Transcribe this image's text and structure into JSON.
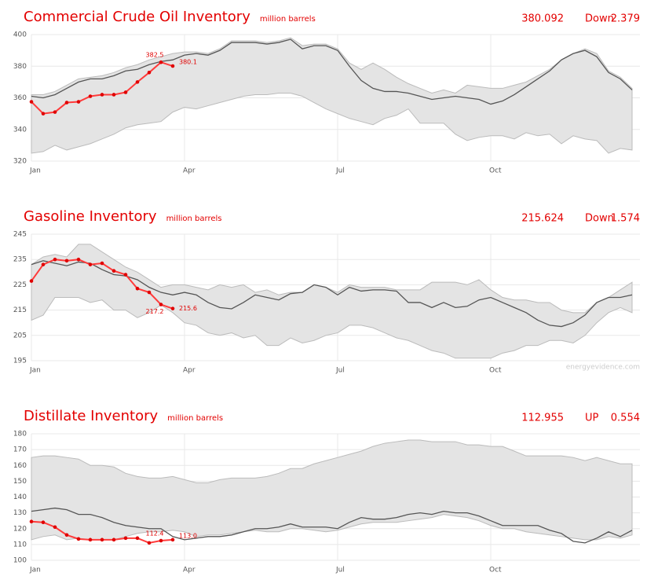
{
  "chart_data": [
    {
      "type": "line",
      "title": "Commercial Crude Oil Inventory",
      "subtitle": "million barrels",
      "latest": "380.092",
      "direction": "Down",
      "change": "2.379",
      "categories": [
        "Jan",
        null,
        null,
        null,
        null,
        null,
        null,
        null,
        null,
        null,
        null,
        null,
        null,
        "Apr",
        null,
        null,
        null,
        null,
        null,
        null,
        null,
        null,
        null,
        null,
        null,
        null,
        "Jul",
        null,
        null,
        null,
        null,
        null,
        null,
        null,
        null,
        null,
        null,
        null,
        null,
        "Oct",
        null,
        null,
        null,
        null,
        null,
        null,
        null,
        null,
        null,
        null,
        null,
        null
      ],
      "ylim": [
        320,
        400
      ],
      "yticks": [
        320,
        340,
        360,
        380,
        400
      ],
      "grid": true,
      "band": {
        "color": "#e4e4e4",
        "high": [
          362,
          362,
          364,
          368,
          372,
          373,
          374,
          376,
          379,
          381,
          384,
          386,
          388,
          389,
          389,
          388,
          391,
          396,
          396,
          396,
          395,
          396,
          398,
          393,
          394,
          394,
          391,
          382,
          378,
          382,
          378,
          373,
          369,
          366,
          363,
          365,
          363,
          368,
          367,
          366,
          366,
          368,
          370,
          374,
          378,
          384,
          388,
          391,
          388,
          377,
          373,
          366
        ],
        "low": [
          325,
          326,
          330,
          327,
          329,
          331,
          334,
          337,
          341,
          343,
          344,
          345,
          351,
          354,
          353,
          355,
          357,
          359,
          361,
          362,
          362,
          363,
          363,
          361,
          357,
          353,
          350,
          347,
          345,
          343,
          347,
          349,
          353,
          344,
          344,
          344,
          337,
          333,
          335,
          336,
          336,
          334,
          338,
          336,
          337,
          331,
          336,
          334,
          333,
          325,
          328,
          327
        ]
      },
      "series": [
        {
          "color": "#555555",
          "values": [
            361,
            360,
            362,
            366,
            370,
            372,
            372,
            374,
            377,
            378,
            381,
            383,
            384,
            387,
            388,
            387,
            390,
            395,
            395,
            395,
            394,
            395,
            397,
            391,
            393,
            393,
            390,
            380,
            371,
            366,
            364,
            364,
            363,
            361,
            359,
            360,
            361,
            360,
            359,
            356,
            358,
            362,
            367,
            372,
            377,
            384,
            388,
            390,
            386,
            376,
            372,
            365
          ]
        },
        {
          "color": "#ff3b3b",
          "markers": true,
          "values": [
            357.5,
            350,
            351,
            357,
            357.5,
            361,
            362,
            362,
            363.5,
            370,
            376,
            382.5,
            380.1,
            null,
            null,
            null,
            null,
            null,
            null,
            null,
            null,
            null,
            null,
            null,
            null,
            null,
            null,
            null,
            null,
            null,
            null,
            null,
            null,
            null,
            null,
            null,
            null,
            null,
            null,
            null,
            null,
            null,
            null,
            null,
            null,
            null,
            null,
            null,
            null,
            null,
            null,
            null
          ],
          "value_labels": [
            null,
            null,
            null,
            null,
            null,
            null,
            null,
            null,
            null,
            null,
            null,
            "382.5",
            "380.1",
            null,
            null,
            null,
            null,
            null,
            null,
            null,
            null,
            null,
            null,
            null,
            null,
            null,
            null,
            null,
            null,
            null,
            null,
            null,
            null,
            null,
            null,
            null,
            null,
            null,
            null,
            null,
            null,
            null,
            null,
            null,
            null,
            null,
            null,
            null,
            null,
            null,
            null,
            null
          ]
        }
      ]
    },
    {
      "type": "line",
      "title": "Gasoline Inventory",
      "subtitle": "million barrels",
      "latest": "215.624",
      "direction": "Down",
      "change": "1.574",
      "source": "energyevidence.com",
      "categories": [
        "Jan",
        null,
        null,
        null,
        null,
        null,
        null,
        null,
        null,
        null,
        null,
        null,
        null,
        "Apr",
        null,
        null,
        null,
        null,
        null,
        null,
        null,
        null,
        null,
        null,
        null,
        null,
        "Jul",
        null,
        null,
        null,
        null,
        null,
        null,
        null,
        null,
        null,
        null,
        null,
        null,
        "Oct",
        null,
        null,
        null,
        null,
        null,
        null,
        null,
        null,
        null,
        null,
        null,
        null
      ],
      "ylim": [
        195,
        245
      ],
      "yticks": [
        195,
        205,
        215,
        225,
        235,
        245
      ],
      "grid": true,
      "band": {
        "color": "#e4e4e4",
        "high": [
          233,
          236,
          237,
          236,
          241,
          241,
          238,
          235,
          232,
          230,
          227,
          224,
          225,
          225,
          224,
          223,
          225,
          224,
          225,
          222,
          223,
          221,
          222,
          222,
          225,
          224,
          222,
          225,
          224,
          224,
          224,
          223,
          223,
          223,
          226,
          226,
          226,
          225,
          227,
          223,
          220,
          219,
          219,
          218,
          218,
          215,
          214,
          214,
          218,
          220,
          223,
          226
        ],
        "low": [
          211,
          213,
          220,
          220,
          220,
          218,
          219,
          215,
          215,
          212,
          214,
          217,
          214,
          210,
          209,
          206,
          205,
          206,
          204,
          205,
          201,
          201,
          204,
          202,
          203,
          205,
          206,
          209,
          209,
          208,
          206,
          204,
          203,
          201,
          199,
          198,
          196,
          196,
          196,
          196,
          198,
          199,
          201,
          201,
          203,
          203,
          202,
          205,
          210,
          214,
          216,
          214
        ]
      },
      "series": [
        {
          "color": "#555555",
          "values": [
            233,
            234.5,
            233.5,
            232.5,
            234,
            233.5,
            231,
            229,
            228.5,
            227,
            224,
            222,
            221,
            222,
            221,
            218,
            216,
            215.5,
            218,
            221,
            220,
            219,
            221.5,
            222,
            225,
            224,
            221,
            224,
            222.5,
            223,
            223,
            222.5,
            218,
            218,
            216,
            218,
            216,
            216.5,
            219,
            220,
            218,
            216,
            214,
            211,
            209,
            208.5,
            210,
            213,
            218,
            220,
            220,
            221
          ]
        },
        {
          "color": "#ff3b3b",
          "markers": true,
          "values": [
            226.5,
            233,
            235,
            234.5,
            235,
            233,
            233.5,
            230.5,
            229,
            223.5,
            222,
            217.2,
            215.6,
            null,
            null,
            null,
            null,
            null,
            null,
            null,
            null,
            null,
            null,
            null,
            null,
            null,
            null,
            null,
            null,
            null,
            null,
            null,
            null,
            null,
            null,
            null,
            null,
            null,
            null,
            null,
            null,
            null,
            null,
            null,
            null,
            null,
            null,
            null,
            null,
            null,
            null,
            null
          ],
          "value_labels": [
            null,
            null,
            null,
            null,
            null,
            null,
            null,
            null,
            null,
            null,
            null,
            "217.2",
            "215.6",
            null,
            null,
            null,
            null,
            null,
            null,
            null,
            null,
            null,
            null,
            null,
            null,
            null,
            null,
            null,
            null,
            null,
            null,
            null,
            null,
            null,
            null,
            null,
            null,
            null,
            null,
            null,
            null,
            null,
            null,
            null,
            null,
            null,
            null,
            null,
            null,
            null,
            null,
            null
          ]
        }
      ]
    },
    {
      "type": "line",
      "title": "Distillate Inventory",
      "subtitle": "million barrels",
      "latest": "112.955",
      "direction": "UP",
      "change": "0.554",
      "categories": [
        "Jan",
        null,
        null,
        null,
        null,
        null,
        null,
        null,
        null,
        null,
        null,
        null,
        null,
        "Apr",
        null,
        null,
        null,
        null,
        null,
        null,
        null,
        null,
        null,
        null,
        null,
        null,
        "Jul",
        null,
        null,
        null,
        null,
        null,
        null,
        null,
        null,
        null,
        null,
        null,
        null,
        "Oct",
        null,
        null,
        null,
        null,
        null,
        null,
        null,
        null,
        null,
        null,
        null,
        null
      ],
      "ylim": [
        100,
        180
      ],
      "yticks": [
        100,
        110,
        120,
        130,
        140,
        150,
        160,
        170,
        180
      ],
      "grid": true,
      "band": {
        "color": "#e4e4e4",
        "high": [
          165,
          166,
          166,
          165,
          164,
          160,
          160,
          159,
          155,
          153,
          152,
          152,
          153,
          151,
          149,
          149,
          151,
          152,
          152,
          152,
          153,
          155,
          158,
          158,
          161,
          163,
          165,
          167,
          169,
          172,
          174,
          175,
          176,
          176,
          175,
          175,
          175,
          173,
          173,
          172,
          172,
          169,
          166,
          166,
          166,
          166,
          165,
          163,
          165,
          163,
          161,
          161
        ],
        "low": [
          113,
          115,
          116,
          113,
          114,
          113,
          113,
          113,
          115,
          117,
          118,
          118,
          119,
          118,
          115,
          116,
          116,
          117,
          118,
          119,
          118,
          118,
          120,
          120,
          119,
          118,
          119,
          121,
          123,
          124,
          124,
          124,
          125,
          126,
          127,
          129,
          128,
          127,
          125,
          122,
          120,
          120,
          118,
          117,
          116,
          115,
          114,
          113,
          113,
          115,
          114,
          116
        ]
      },
      "series": [
        {
          "color": "#555555",
          "values": [
            131,
            132,
            133,
            132,
            129,
            129,
            127,
            124,
            122,
            121,
            120,
            120,
            115,
            113,
            114,
            115,
            115,
            116,
            118,
            120,
            120,
            121,
            123,
            121,
            121,
            121,
            120,
            124,
            127,
            126,
            126,
            127,
            129,
            130,
            129,
            131,
            130,
            130,
            128,
            125,
            122,
            122,
            122,
            122,
            119,
            117,
            112,
            111,
            114,
            118,
            115,
            119
          ]
        },
        {
          "color": "#ff3b3b",
          "markers": true,
          "values": [
            124.5,
            124,
            121,
            116,
            113.5,
            113,
            113,
            113,
            114,
            114,
            111,
            112.4,
            113,
            null,
            null,
            null,
            null,
            null,
            null,
            null,
            null,
            null,
            null,
            null,
            null,
            null,
            null,
            null,
            null,
            null,
            null,
            null,
            null,
            null,
            null,
            null,
            null,
            null,
            null,
            null,
            null,
            null,
            null,
            null,
            null,
            null,
            null,
            null,
            null,
            null,
            null,
            null
          ],
          "value_labels": [
            null,
            null,
            null,
            null,
            null,
            null,
            null,
            null,
            null,
            null,
            null,
            "112.4",
            "113.0",
            null,
            null,
            null,
            null,
            null,
            null,
            null,
            null,
            null,
            null,
            null,
            null,
            null,
            null,
            null,
            null,
            null,
            null,
            null,
            null,
            null,
            null,
            null,
            null,
            null,
            null,
            null,
            null,
            null,
            null,
            null,
            null,
            null,
            null,
            null,
            null,
            null,
            null,
            null
          ]
        }
      ]
    }
  ]
}
